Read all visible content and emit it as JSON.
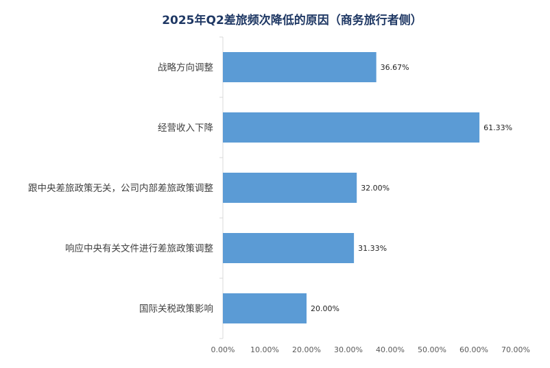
{
  "chart_data": {
    "type": "bar",
    "orientation": "horizontal",
    "title": "2025年Q2差旅频次降低的原因（商务旅行者侧）",
    "categories": [
      "战略方向调整",
      "经营收入下降",
      "跟中央差旅政策无关，公司内部差旅政策调整",
      "响应中央有关文件进行差旅政策调整",
      "国际关税政策影响"
    ],
    "values": [
      36.67,
      61.33,
      32.0,
      31.33,
      20.0
    ],
    "value_labels": [
      "36.67%",
      "61.33%",
      "32.00%",
      "31.33%",
      "20.00%"
    ],
    "xlim": [
      0,
      70
    ],
    "x_ticks": [
      0,
      10,
      20,
      30,
      40,
      50,
      60,
      70
    ],
    "x_tick_labels": [
      "0.00%",
      "10.00%",
      "20.00%",
      "30.00%",
      "40.00%",
      "50.00%",
      "60.00%",
      "70.00%"
    ],
    "bar_color": "#5b9bd5",
    "title_color": "#1f3864",
    "grid": false,
    "legend": "none"
  }
}
